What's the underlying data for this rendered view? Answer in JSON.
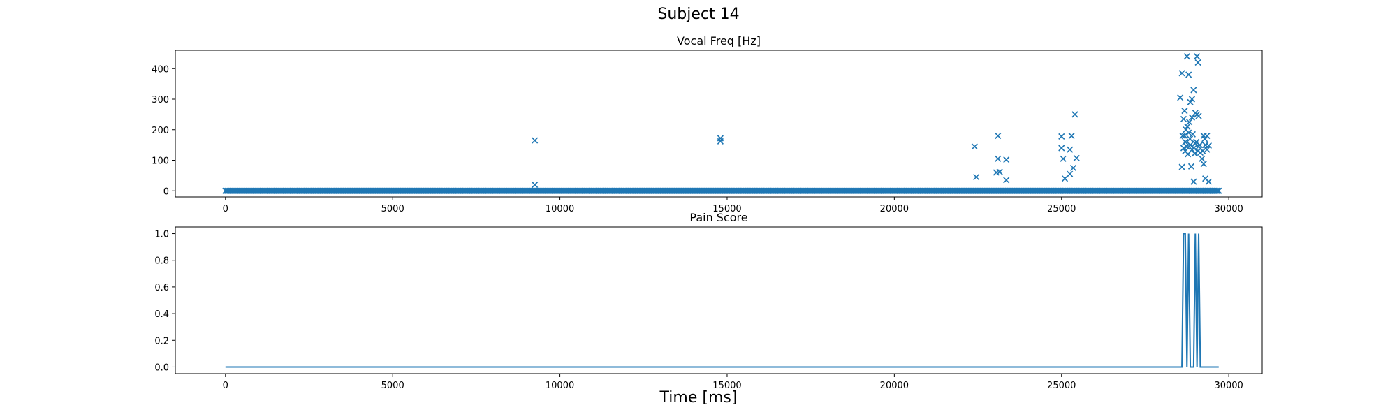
{
  "figure": {
    "title": "Subject 14",
    "xlabel": "Time [ms]",
    "series_color": "#1f77b4"
  },
  "chart_data": [
    {
      "type": "scatter",
      "title": "Vocal Freq [Hz]",
      "xlabel": "",
      "ylabel": "",
      "xlim": [
        -1500,
        31000
      ],
      "ylim": [
        -20,
        460
      ],
      "xticks": [
        0,
        5000,
        10000,
        15000,
        20000,
        25000,
        30000
      ],
      "yticks": [
        0,
        100,
        200,
        300,
        400
      ],
      "marker": "x",
      "baseline": {
        "y": 0,
        "x_start": 0,
        "x_end": 29700,
        "step": 30
      },
      "points": [
        [
          9250,
          165
        ],
        [
          9250,
          20
        ],
        [
          14800,
          172
        ],
        [
          14800,
          162
        ],
        [
          22400,
          145
        ],
        [
          22450,
          45
        ],
        [
          23050,
          60
        ],
        [
          23100,
          180
        ],
        [
          23100,
          105
        ],
        [
          23150,
          62
        ],
        [
          23350,
          102
        ],
        [
          23350,
          35
        ],
        [
          25000,
          178
        ],
        [
          25000,
          140
        ],
        [
          25050,
          105
        ],
        [
          25100,
          40
        ],
        [
          25250,
          135
        ],
        [
          25250,
          55
        ],
        [
          25300,
          180
        ],
        [
          25350,
          75
        ],
        [
          25400,
          250
        ],
        [
          25450,
          107
        ],
        [
          28550,
          305
        ],
        [
          28600,
          385
        ],
        [
          28600,
          78
        ],
        [
          28620,
          180
        ],
        [
          28650,
          140
        ],
        [
          28650,
          235
        ],
        [
          28680,
          262
        ],
        [
          28700,
          130
        ],
        [
          28700,
          160
        ],
        [
          28720,
          200
        ],
        [
          28750,
          440
        ],
        [
          28750,
          145
        ],
        [
          28780,
          120
        ],
        [
          28800,
          380
        ],
        [
          28800,
          190
        ],
        [
          28820,
          225
        ],
        [
          28850,
          290
        ],
        [
          28850,
          150
        ],
        [
          28880,
          80
        ],
        [
          28900,
          240
        ],
        [
          28900,
          300
        ],
        [
          28900,
          135
        ],
        [
          28920,
          185
        ],
        [
          28950,
          330
        ],
        [
          28950,
          30
        ],
        [
          28980,
          122
        ],
        [
          29000,
          255
        ],
        [
          29000,
          155
        ],
        [
          29050,
          440
        ],
        [
          29050,
          250
        ],
        [
          29080,
          420
        ],
        [
          29080,
          130
        ],
        [
          29100,
          245
        ],
        [
          29100,
          145
        ],
        [
          29150,
          125
        ],
        [
          29200,
          105
        ],
        [
          29250,
          180
        ],
        [
          29250,
          88
        ],
        [
          29300,
          150
        ],
        [
          29300,
          40
        ],
        [
          29350,
          135
        ],
        [
          29350,
          180
        ],
        [
          29400,
          148
        ],
        [
          29400,
          30
        ],
        [
          28680,
          180
        ],
        [
          28760,
          210
        ],
        [
          28840,
          170
        ],
        [
          28960,
          140
        ],
        [
          29030,
          160
        ],
        [
          29130,
          150
        ],
        [
          29220,
          130
        ],
        [
          29280,
          170
        ]
      ]
    },
    {
      "type": "line",
      "title": "Pain Score",
      "xlabel": "",
      "ylabel": "",
      "xlim": [
        -1500,
        31000
      ],
      "ylim": [
        -0.05,
        1.05
      ],
      "xticks": [
        0,
        5000,
        10000,
        15000,
        20000,
        25000,
        30000
      ],
      "yticks": [
        0.0,
        0.2,
        0.4,
        0.6,
        0.8,
        1.0
      ],
      "ytick_labels": [
        "0.0",
        "0.2",
        "0.4",
        "0.6",
        "0.8",
        "1.0"
      ],
      "x": [
        0,
        28600,
        28650,
        28700,
        28750,
        28800,
        28850,
        28950,
        29000,
        29050,
        29100,
        29150,
        29700
      ],
      "y": [
        0,
        0,
        1,
        1,
        0,
        1,
        0,
        0,
        1,
        0,
        1,
        0,
        0
      ]
    }
  ]
}
